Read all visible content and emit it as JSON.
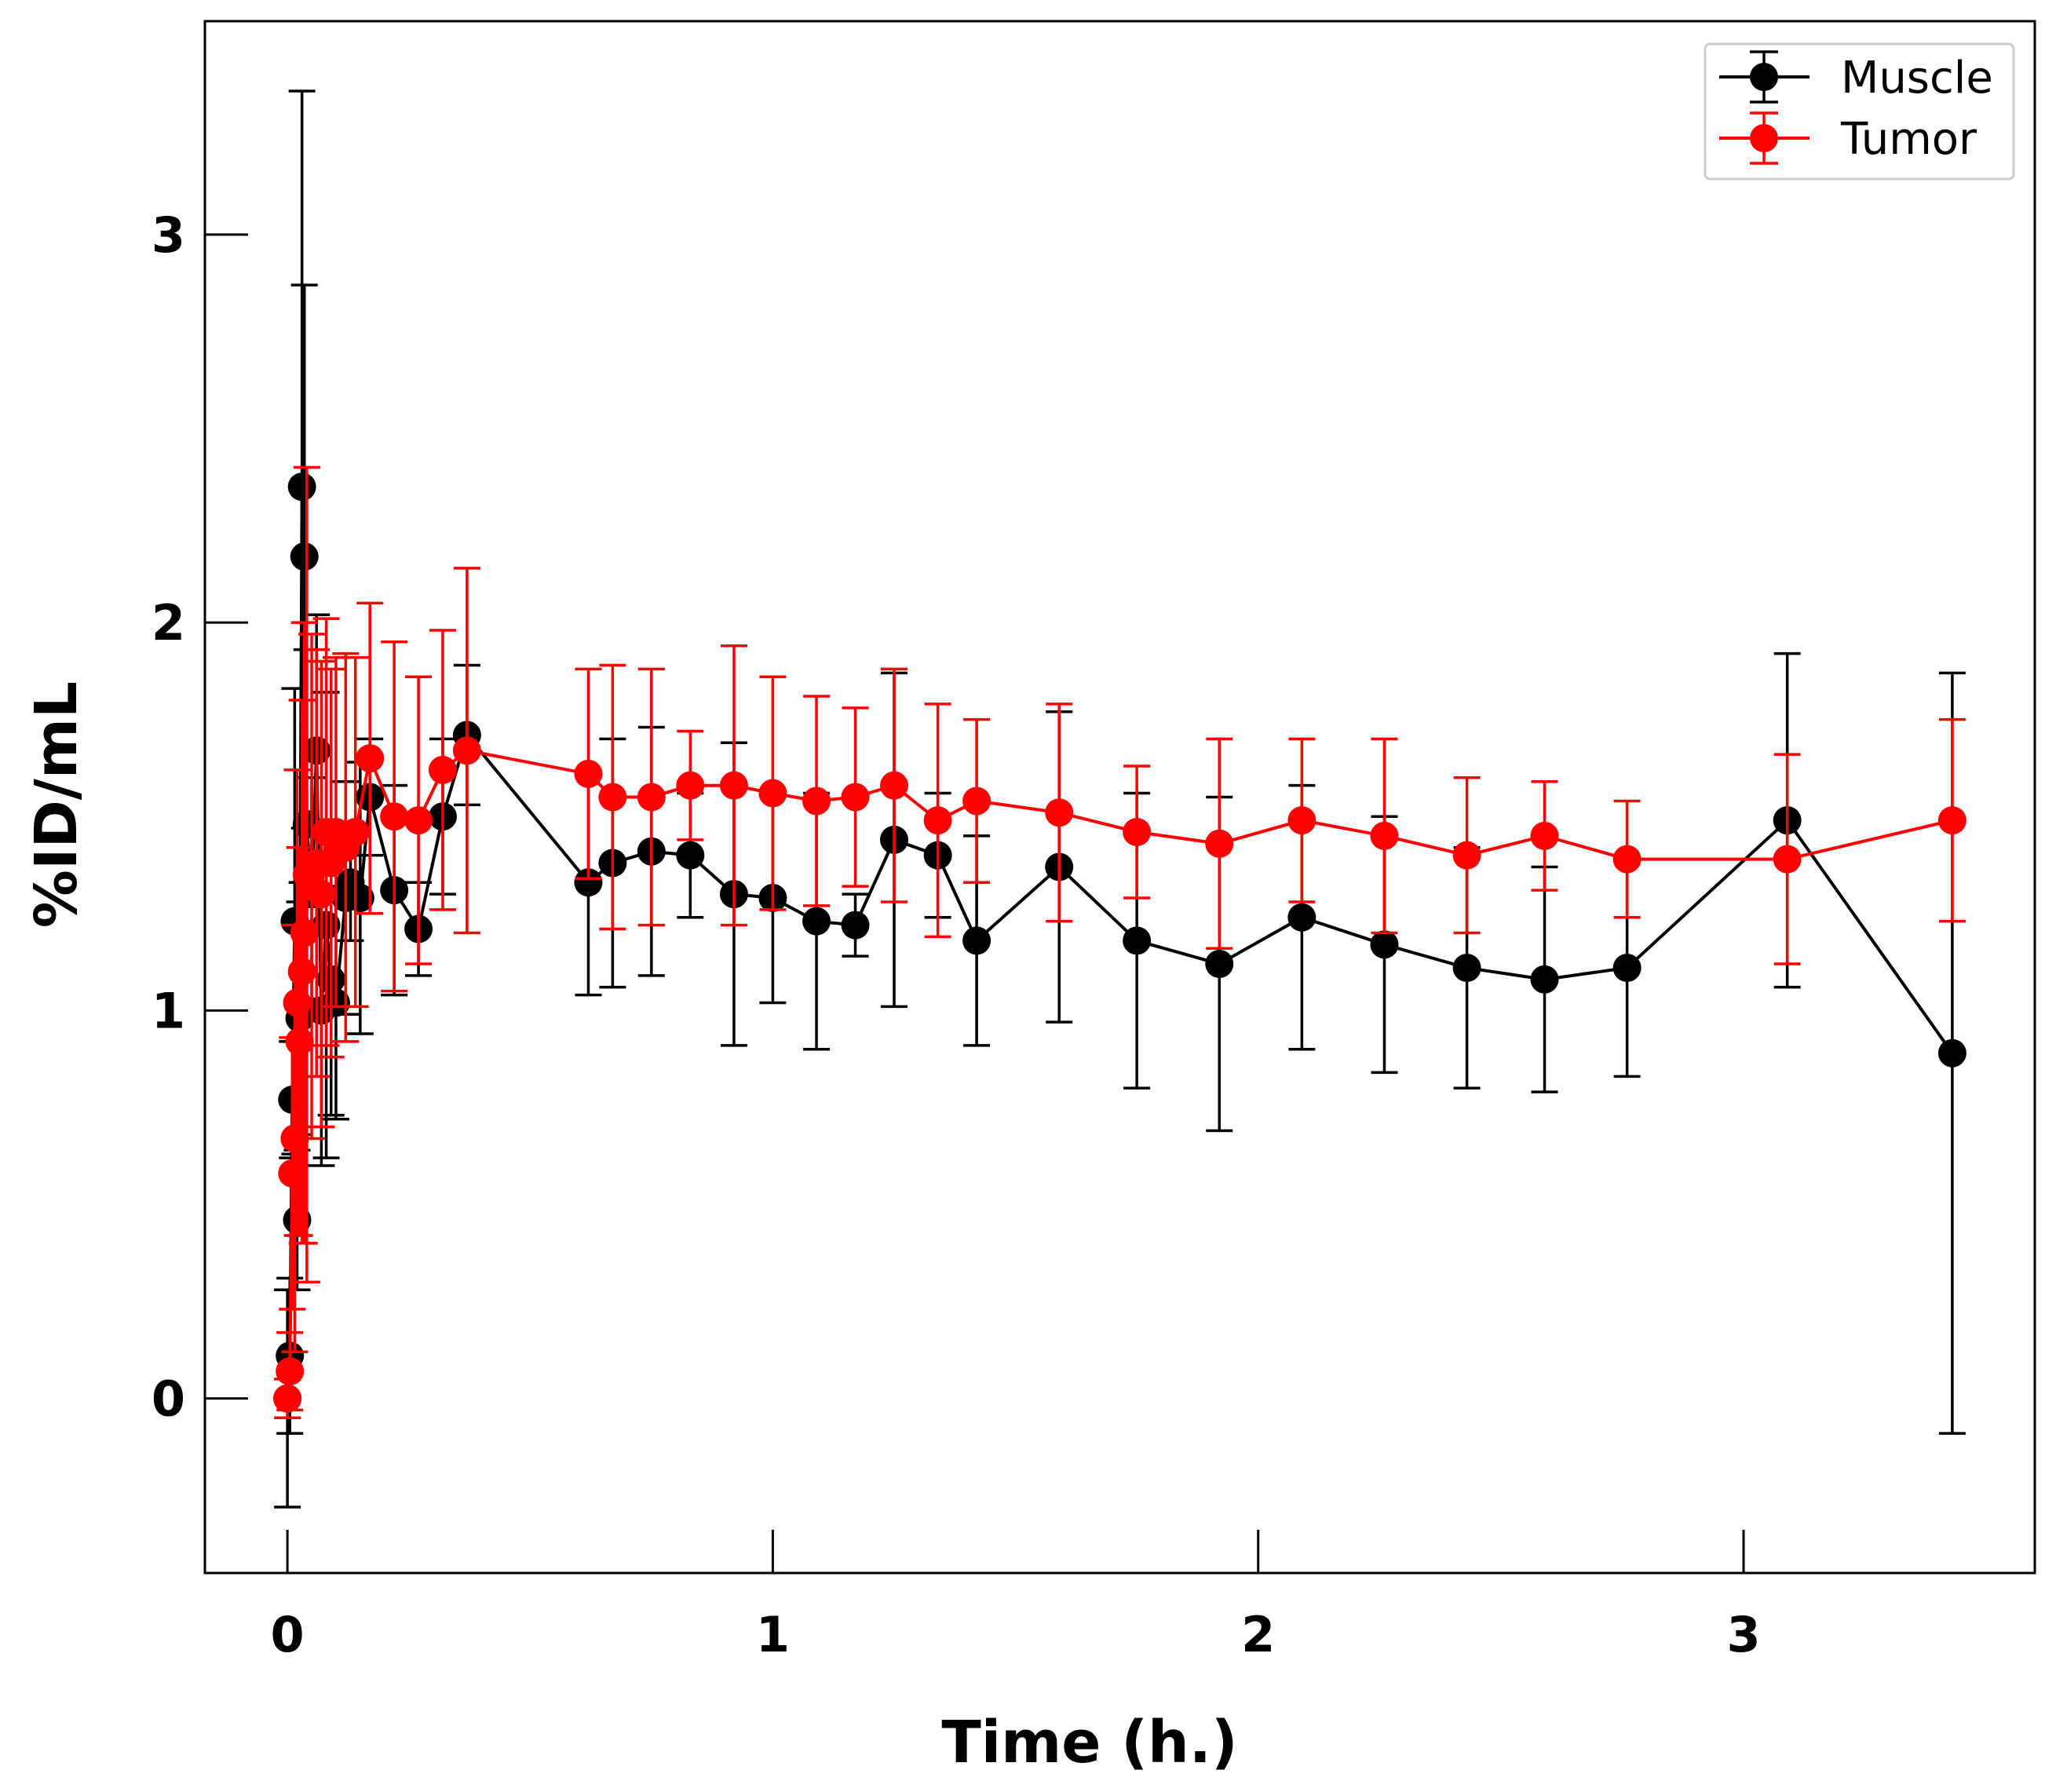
{
  "chart_data": {
    "type": "line",
    "title": "",
    "xlabel": "Time (h.)",
    "ylabel": "%ID/mL",
    "xlim": [
      -0.17,
      3.6
    ],
    "ylim": [
      -0.45,
      3.55
    ],
    "xticks": [
      0,
      1,
      2,
      3
    ],
    "yticks": [
      0,
      1,
      2,
      3
    ],
    "legend_position": "top-right",
    "series": [
      {
        "name": "Muscle",
        "color": "#000000",
        "x": [
          0.0,
          0.005,
          0.01,
          0.015,
          0.02,
          0.025,
          0.03,
          0.035,
          0.04,
          0.05,
          0.06,
          0.07,
          0.08,
          0.09,
          0.1,
          0.12,
          0.13,
          0.15,
          0.17,
          0.22,
          0.27,
          0.32,
          0.37,
          0.62,
          0.67,
          0.75,
          0.83,
          0.92,
          1.0,
          1.09,
          1.17,
          1.25,
          1.34,
          1.42,
          1.59,
          1.75,
          1.92,
          2.09,
          2.26,
          2.43,
          2.59,
          2.76,
          3.09,
          3.43
        ],
        "y": [
          0.0,
          0.11,
          0.77,
          1.23,
          0.46,
          0.98,
          2.35,
          2.17,
          1.48,
          1.3,
          1.67,
          1.0,
          1.22,
          1.08,
          1.02,
          1.29,
          1.33,
          1.29,
          1.55,
          1.31,
          1.21,
          1.5,
          1.71,
          1.33,
          1.38,
          1.41,
          1.4,
          1.3,
          1.29,
          1.23,
          1.22,
          1.44,
          1.4,
          1.18,
          1.37,
          1.18,
          1.12,
          1.24,
          1.17,
          1.11,
          1.08,
          1.11,
          1.49,
          0.89
        ],
        "error": [
          0.28,
          0.2,
          0.15,
          0.6,
          0.18,
          0.3,
          1.02,
          0.7,
          0.45,
          0.3,
          0.35,
          0.4,
          0.6,
          0.35,
          0.3,
          0.3,
          0.15,
          0.35,
          0.15,
          0.27,
          0.12,
          0.2,
          0.18,
          0.29,
          0.32,
          0.32,
          0.16,
          0.39,
          0.27,
          0.33,
          0.08,
          0.43,
          0.16,
          0.27,
          0.4,
          0.38,
          0.43,
          0.34,
          0.33,
          0.31,
          0.29,
          0.28,
          0.43,
          0.98
        ]
      },
      {
        "name": "Tumor",
        "color": "#ff0000",
        "x": [
          0.0,
          0.005,
          0.01,
          0.015,
          0.02,
          0.025,
          0.03,
          0.035,
          0.04,
          0.05,
          0.06,
          0.07,
          0.08,
          0.09,
          0.1,
          0.12,
          0.14,
          0.17,
          0.22,
          0.27,
          0.32,
          0.37,
          0.62,
          0.67,
          0.75,
          0.83,
          0.92,
          1.0,
          1.09,
          1.17,
          1.25,
          1.34,
          1.42,
          1.59,
          1.75,
          1.92,
          2.09,
          2.26,
          2.43,
          2.59,
          2.76,
          3.09,
          3.43
        ],
        "y": [
          0.0,
          0.07,
          0.58,
          0.67,
          1.02,
          0.92,
          1.1,
          1.2,
          1.35,
          1.32,
          1.38,
          1.3,
          1.46,
          1.38,
          1.46,
          1.42,
          1.46,
          1.65,
          1.5,
          1.49,
          1.62,
          1.67,
          1.61,
          1.55,
          1.55,
          1.58,
          1.58,
          1.56,
          1.54,
          1.55,
          1.58,
          1.49,
          1.54,
          1.51,
          1.46,
          1.43,
          1.49,
          1.45,
          1.4,
          1.45,
          1.39,
          1.39,
          1.49
        ],
        "error": [
          0.05,
          0.1,
          0.35,
          0.55,
          0.6,
          0.5,
          0.7,
          0.8,
          1.05,
          0.65,
          0.55,
          0.6,
          0.55,
          0.5,
          0.45,
          0.5,
          0.45,
          0.4,
          0.45,
          0.37,
          0.36,
          0.47,
          0.27,
          0.34,
          0.33,
          0.14,
          0.36,
          0.3,
          0.27,
          0.23,
          0.3,
          0.3,
          0.21,
          0.28,
          0.17,
          0.27,
          0.21,
          0.25,
          0.2,
          0.14,
          0.15,
          0.27,
          0.26
        ]
      }
    ]
  }
}
